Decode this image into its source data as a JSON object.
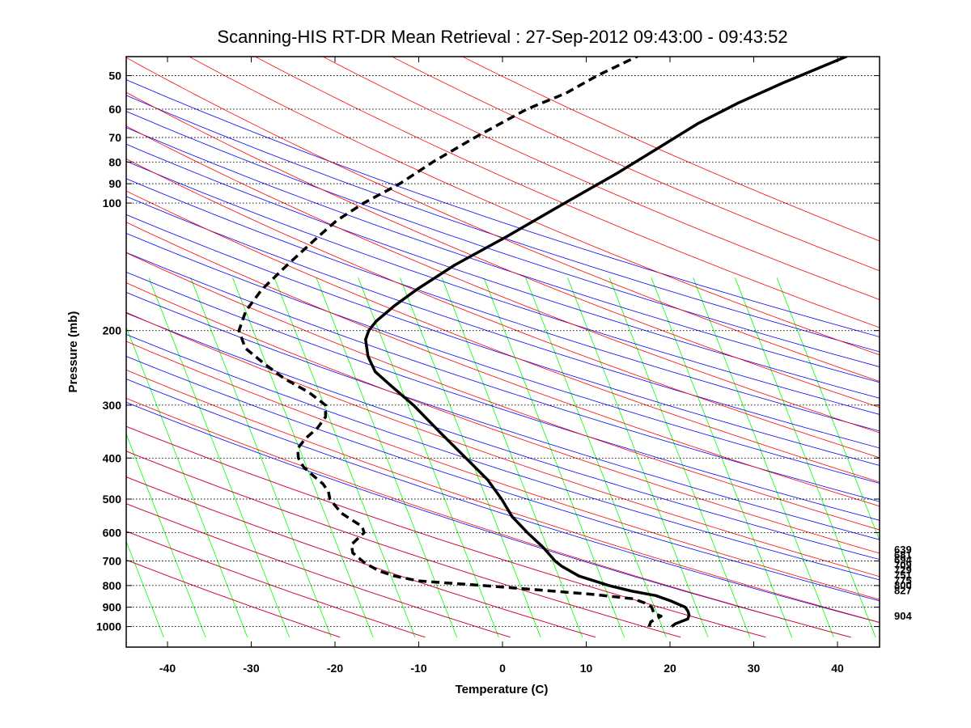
{
  "chart_data": {
    "type": "line",
    "subtype": "skew-t log-p sounding",
    "title": "Scanning-HIS RT-DR Mean Retrieval : 27-Sep-2012 09:43:00 - 09:43:52",
    "xlabel": "Temperature (C)",
    "ylabel": "Pressure (mb)",
    "xlim": [
      -45,
      45
    ],
    "ylim": [
      1050,
      45
    ],
    "x_ticks": [
      "-40",
      "-30",
      "-20",
      "-10",
      "0",
      "10",
      "20",
      "30",
      "40"
    ],
    "y_ticks": [
      "50",
      "60",
      "70",
      "80",
      "90",
      "100",
      "200",
      "300",
      "400",
      "500",
      "600",
      "700",
      "800",
      "900",
      "1000"
    ],
    "grid": "dotted horizontal isobars",
    "background_lines": {
      "dry_adiabats": {
        "color": "#0000ff"
      },
      "moist_adiabats": {
        "color": "#ff0000"
      },
      "mixing_ratio_lines": {
        "color": "#00ff00"
      }
    },
    "series": [
      {
        "name": "temperature",
        "style": "solid",
        "points": [
          [
            1000,
            20.2
          ],
          [
            985,
            20.5
          ],
          [
            960,
            21.8
          ],
          [
            940,
            21.8
          ],
          [
            920,
            21.5
          ],
          [
            900,
            21.0
          ],
          [
            870,
            19.0
          ],
          [
            845,
            17.0
          ],
          [
            825,
            14.0
          ],
          [
            800,
            11.0
          ],
          [
            760,
            7.0
          ],
          [
            720,
            4.5
          ],
          [
            700,
            3.5
          ],
          [
            650,
            1.5
          ],
          [
            600,
            -1.0
          ],
          [
            550,
            -3.5
          ],
          [
            500,
            -5.5
          ],
          [
            450,
            -8.0
          ],
          [
            400,
            -11.5
          ],
          [
            350,
            -15.5
          ],
          [
            300,
            -20.0
          ],
          [
            270,
            -23.5
          ],
          [
            250,
            -26.0
          ],
          [
            230,
            -27.5
          ],
          [
            210,
            -28.5
          ],
          [
            200,
            -28.5
          ],
          [
            190,
            -28.0
          ],
          [
            175,
            -26.5
          ],
          [
            160,
            -24.5
          ],
          [
            140,
            -21.0
          ],
          [
            120,
            -16.0
          ],
          [
            100,
            -10.5
          ],
          [
            85,
            -5.5
          ],
          [
            75,
            -2.0
          ],
          [
            65,
            2.0
          ],
          [
            58,
            6.0
          ],
          [
            52,
            10.5
          ],
          [
            45,
            17.0
          ]
        ]
      },
      {
        "name": "dewpoint",
        "style": "dashed",
        "points": [
          [
            1000,
            17.5
          ],
          [
            975,
            17.5
          ],
          [
            960,
            18.0
          ],
          [
            945,
            18.5
          ],
          [
            930,
            17.5
          ],
          [
            900,
            17.0
          ],
          [
            880,
            16.0
          ],
          [
            860,
            14.5
          ],
          [
            840,
            9.5
          ],
          [
            820,
            3.0
          ],
          [
            800,
            -4.0
          ],
          [
            785,
            -10.0
          ],
          [
            780,
            -12.0
          ],
          [
            760,
            -15.0
          ],
          [
            740,
            -17.0
          ],
          [
            710,
            -19.0
          ],
          [
            690,
            -20.0
          ],
          [
            670,
            -21.0
          ],
          [
            640,
            -21.5
          ],
          [
            600,
            -20.5
          ],
          [
            580,
            -21.0
          ],
          [
            560,
            -22.5
          ],
          [
            540,
            -24.0
          ],
          [
            520,
            -25.0
          ],
          [
            500,
            -26.0
          ],
          [
            480,
            -26.5
          ],
          [
            460,
            -27.5
          ],
          [
            440,
            -29.0
          ],
          [
            420,
            -30.5
          ],
          [
            400,
            -31.5
          ],
          [
            380,
            -32.0
          ],
          [
            360,
            -31.5
          ],
          [
            340,
            -30.5
          ],
          [
            320,
            -30.0
          ],
          [
            300,
            -30.5
          ],
          [
            280,
            -33.0
          ],
          [
            260,
            -36.5
          ],
          [
            240,
            -39.5
          ],
          [
            220,
            -42.5
          ],
          [
            200,
            -44.0
          ],
          [
            180,
            -44.0
          ],
          [
            160,
            -43.0
          ],
          [
            140,
            -41.0
          ],
          [
            120,
            -38.5
          ],
          [
            110,
            -37.0
          ],
          [
            100,
            -34.5
          ],
          [
            90,
            -31.0
          ],
          [
            80,
            -28.0
          ],
          [
            70,
            -24.0
          ],
          [
            60,
            -19.0
          ],
          [
            55,
            -15.0
          ],
          [
            50,
            -12.0
          ],
          [
            45,
            -8.0
          ]
        ]
      }
    ],
    "side_labels": [
      "639",
      "681",
      "694",
      "709",
      "729",
      "751",
      "775",
      "800",
      "827",
      "904"
    ]
  }
}
